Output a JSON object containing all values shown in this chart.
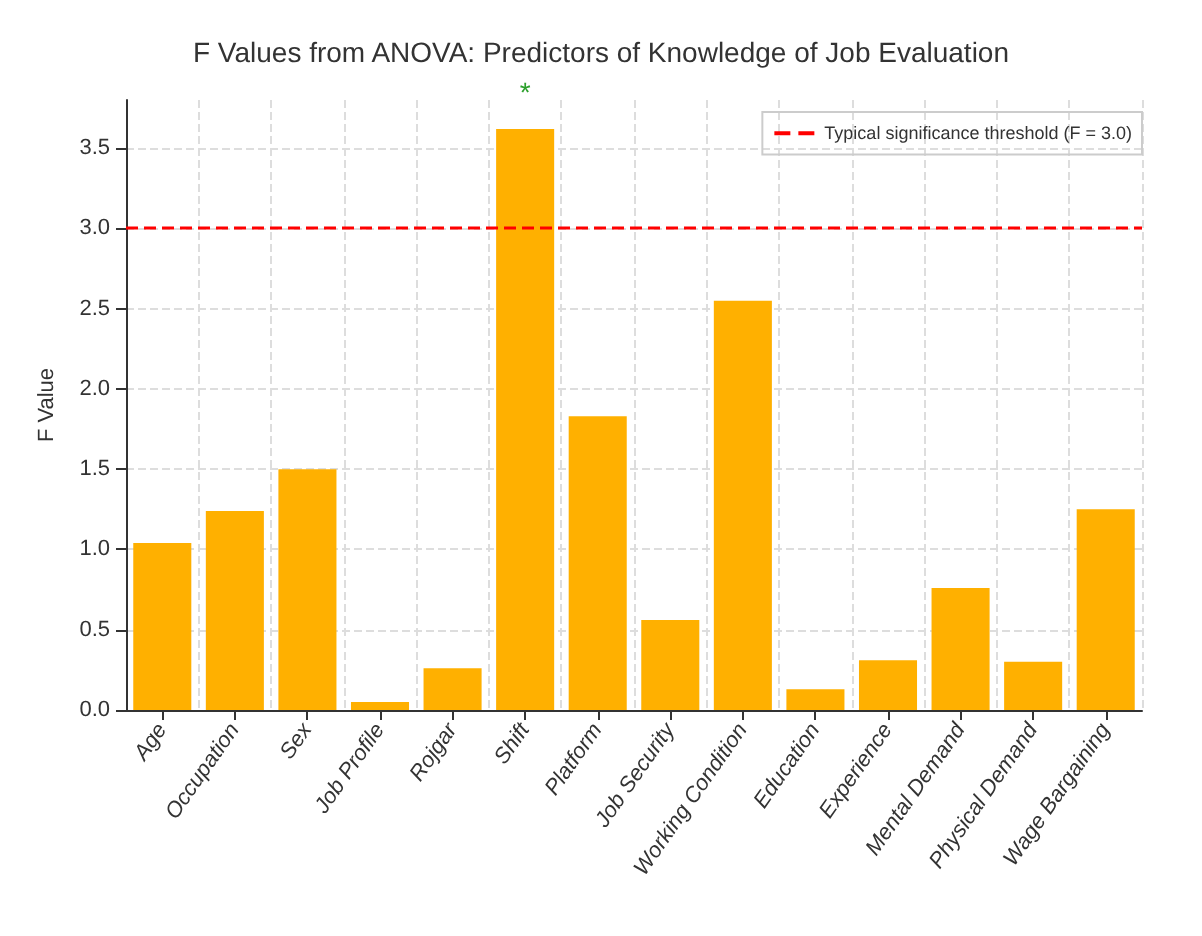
{
  "chart_data": {
    "type": "bar",
    "title": "F Values from ANOVA: Predictors of Knowledge of Job Evaluation",
    "ylabel": "F Value",
    "categories": [
      "Age",
      "Occupation",
      "Sex",
      "Job Profile",
      "Rojgar",
      "Shift",
      "Platform",
      "Job Security",
      "Working Condition",
      "Education",
      "Experience",
      "Mental Demand",
      "Physical Demand",
      "Wage Bargaining"
    ],
    "values": [
      1.04,
      1.24,
      1.5,
      0.05,
      0.26,
      3.62,
      1.83,
      0.56,
      2.55,
      0.13,
      0.31,
      0.76,
      0.3,
      1.25
    ],
    "color": "#ffb000",
    "ylim": [
      0,
      3.8
    ],
    "yticks": [
      {
        "value": 0,
        "label": "0.0"
      },
      {
        "value": 0.5,
        "label": "0.5"
      },
      {
        "value": 1,
        "label": "1.0"
      },
      {
        "value": 1.5,
        "label": "1.5"
      },
      {
        "value": 2,
        "label": "2.0"
      },
      {
        "value": 2.5,
        "label": "2.5"
      },
      {
        "value": 3,
        "label": "3.0"
      },
      {
        "value": 3.5,
        "label": "3.5"
      }
    ],
    "ref_lines": [
      {
        "axis": "y",
        "value": 3.0,
        "label": "Typical significance threshold (F = 3.0)",
        "color": "#ff0000",
        "line_style": "dashed"
      }
    ],
    "annotations": [
      "*"
    ],
    "grid": true,
    "legend": "top right"
  }
}
